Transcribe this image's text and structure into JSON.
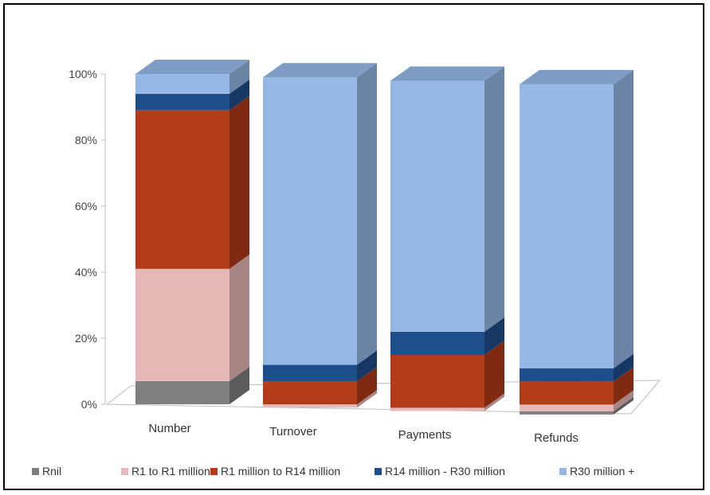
{
  "chart_data": {
    "type": "bar",
    "stacked": "percent",
    "three_d": true,
    "title": "",
    "xlabel": "",
    "ylabel": "",
    "ylim": [
      0,
      100
    ],
    "y_ticks": [
      "0%",
      "20%",
      "40%",
      "60%",
      "80%",
      "100%"
    ],
    "categories": [
      "Number",
      "Turnover",
      "Payments",
      "Refunds"
    ],
    "legend_position": "bottom",
    "series": [
      {
        "name": "Rnil",
        "color": "#7f7f7f",
        "values": [
          7,
          0,
          0,
          1
        ]
      },
      {
        "name": "R1 to R1 million",
        "color": "#e6b9b8",
        "values": [
          34,
          1,
          1,
          2
        ]
      },
      {
        "name": "R1 million to R14 million",
        "color": "#b23c17",
        "values": [
          48,
          7,
          16,
          7
        ]
      },
      {
        "name": "R14 million - R30 million",
        "color": "#1f4e8c",
        "values": [
          5,
          5,
          7,
          4
        ]
      },
      {
        "name": "R30 million +",
        "color": "#95b8e6",
        "values": [
          6,
          87,
          76,
          86
        ]
      }
    ]
  }
}
